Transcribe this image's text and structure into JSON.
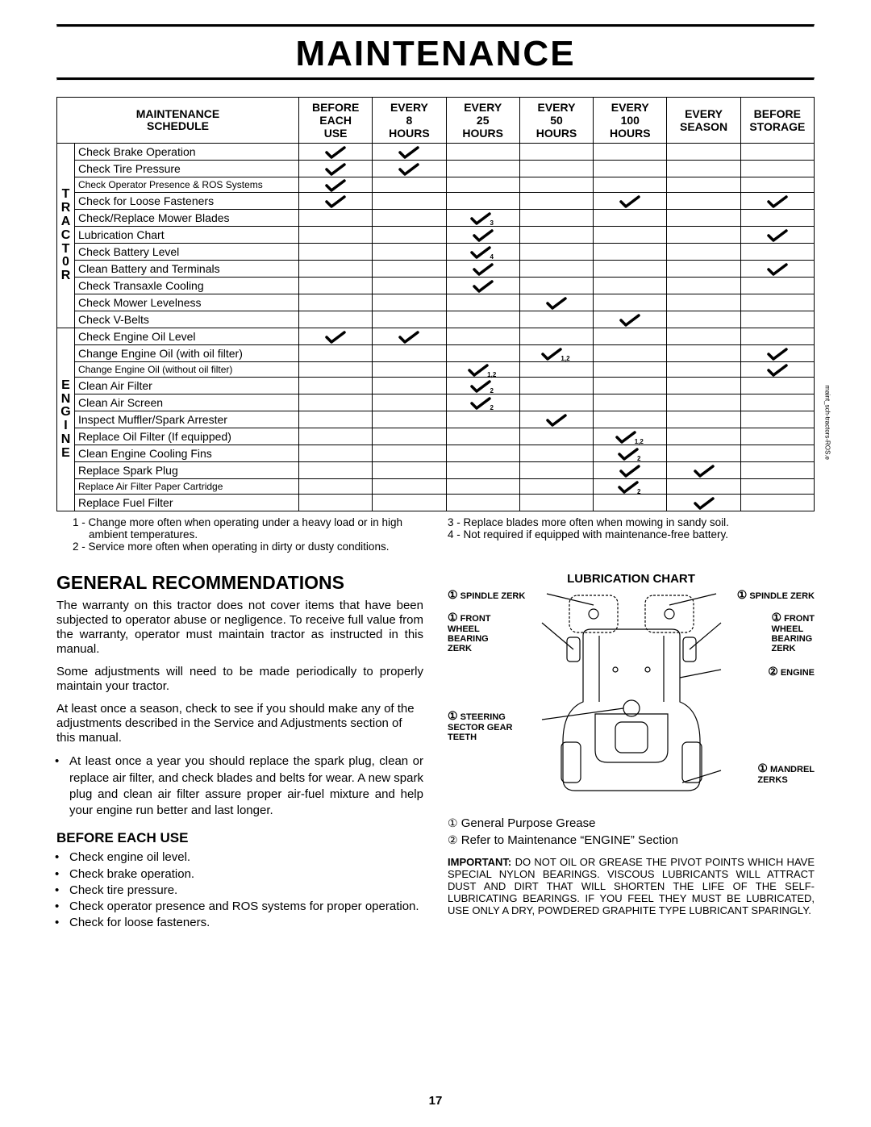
{
  "page_title": "MAINTENANCE",
  "page_number": "17",
  "side_note": "maint_sch-tractors-ROS.e",
  "schedule": {
    "header_title_l1": "MAINTENANCE",
    "header_title_l2": "SCHEDULE",
    "columns": [
      {
        "l1": "BEFORE",
        "l2": "EACH",
        "l3": "USE"
      },
      {
        "l1": "EVERY",
        "l2": "8",
        "l3": "HOURS"
      },
      {
        "l1": "EVERY",
        "l2": "25",
        "l3": "HOURS"
      },
      {
        "l1": "EVERY",
        "l2": "50",
        "l3": "HOURS"
      },
      {
        "l1": "EVERY",
        "l2": "100",
        "l3": "HOURS"
      },
      {
        "l1": "EVERY",
        "l2": "SEASON",
        "l3": ""
      },
      {
        "l1": "BEFORE",
        "l2": "STORAGE",
        "l3": ""
      }
    ],
    "sections": [
      {
        "label_letters": [
          "T",
          "R",
          "A",
          "C",
          "T",
          "0",
          "R"
        ],
        "rows": [
          {
            "task": "Check Brake Operation",
            "checks": [
              true,
              true,
              false,
              false,
              false,
              false,
              false
            ],
            "subs": [
              "",
              "",
              "",
              "",
              "",
              "",
              ""
            ]
          },
          {
            "task": "Check Tire Pressure",
            "checks": [
              true,
              true,
              false,
              false,
              false,
              false,
              false
            ],
            "subs": [
              "",
              "",
              "",
              "",
              "",
              "",
              ""
            ]
          },
          {
            "task": "Check Operator Presence & ROS Systems",
            "checks": [
              true,
              false,
              false,
              false,
              false,
              false,
              false
            ],
            "subs": [
              "",
              "",
              "",
              "",
              "",
              "",
              ""
            ],
            "small": true
          },
          {
            "task": "Check for Loose Fasteners",
            "checks": [
              true,
              false,
              false,
              false,
              true,
              false,
              true
            ],
            "subs": [
              "",
              "",
              "",
              "",
              "",
              "",
              ""
            ]
          },
          {
            "task": "Check/Replace Mower Blades",
            "checks": [
              false,
              false,
              true,
              false,
              false,
              false,
              false
            ],
            "subs": [
              "",
              "",
              "3",
              "",
              "",
              "",
              ""
            ]
          },
          {
            "task": "Lubrication Chart",
            "checks": [
              false,
              false,
              true,
              false,
              false,
              false,
              true
            ],
            "subs": [
              "",
              "",
              "",
              "",
              "",
              "",
              ""
            ]
          },
          {
            "task": "Check Battery Level",
            "checks": [
              false,
              false,
              true,
              false,
              false,
              false,
              false
            ],
            "subs": [
              "",
              "",
              "4",
              "",
              "",
              "",
              ""
            ]
          },
          {
            "task": "Clean Battery and Terminals",
            "checks": [
              false,
              false,
              true,
              false,
              false,
              false,
              true
            ],
            "subs": [
              "",
              "",
              "",
              "",
              "",
              "",
              ""
            ]
          },
          {
            "task": "Check Transaxle Cooling",
            "checks": [
              false,
              false,
              true,
              false,
              false,
              false,
              false
            ],
            "subs": [
              "",
              "",
              "",
              "",
              "",
              "",
              ""
            ]
          },
          {
            "task": "Check Mower Levelness",
            "checks": [
              false,
              false,
              false,
              true,
              false,
              false,
              false
            ],
            "subs": [
              "",
              "",
              "",
              "",
              "",
              "",
              ""
            ]
          },
          {
            "task": "Check V-Belts",
            "checks": [
              false,
              false,
              false,
              false,
              true,
              false,
              false
            ],
            "subs": [
              "",
              "",
              "",
              "",
              "",
              "",
              ""
            ]
          }
        ]
      },
      {
        "label_letters": [
          "E",
          "N",
          "G",
          "I",
          "N",
          "E"
        ],
        "rows": [
          {
            "task": "Check Engine Oil Level",
            "checks": [
              true,
              true,
              false,
              false,
              false,
              false,
              false
            ],
            "subs": [
              "",
              "",
              "",
              "",
              "",
              "",
              ""
            ]
          },
          {
            "task": "Change Engine Oil (with oil filter)",
            "checks": [
              false,
              false,
              false,
              true,
              false,
              false,
              true
            ],
            "subs": [
              "",
              "",
              "",
              "1,2",
              "",
              "",
              ""
            ]
          },
          {
            "task": "Change Engine Oil (without oil filter)",
            "checks": [
              false,
              false,
              true,
              false,
              false,
              false,
              true
            ],
            "subs": [
              "",
              "",
              "1,2",
              "",
              "",
              "",
              ""
            ],
            "small": true
          },
          {
            "task": "Clean Air Filter",
            "checks": [
              false,
              false,
              true,
              false,
              false,
              false,
              false
            ],
            "subs": [
              "",
              "",
              "2",
              "",
              "",
              "",
              ""
            ]
          },
          {
            "task": "Clean Air Screen",
            "checks": [
              false,
              false,
              true,
              false,
              false,
              false,
              false
            ],
            "subs": [
              "",
              "",
              "2",
              "",
              "",
              "",
              ""
            ]
          },
          {
            "task": "Inspect Muffler/Spark Arrester",
            "checks": [
              false,
              false,
              false,
              true,
              false,
              false,
              false
            ],
            "subs": [
              "",
              "",
              "",
              "",
              "",
              "",
              ""
            ]
          },
          {
            "task": "Replace Oil Filter (If equipped)",
            "checks": [
              false,
              false,
              false,
              false,
              true,
              false,
              false
            ],
            "subs": [
              "",
              "",
              "",
              "",
              "1,2",
              "",
              ""
            ]
          },
          {
            "task": "Clean Engine Cooling Fins",
            "checks": [
              false,
              false,
              false,
              false,
              true,
              false,
              false
            ],
            "subs": [
              "",
              "",
              "",
              "",
              "2",
              "",
              ""
            ]
          },
          {
            "task": "Replace Spark Plug",
            "checks": [
              false,
              false,
              false,
              false,
              true,
              true,
              false
            ],
            "subs": [
              "",
              "",
              "",
              "",
              "",
              "",
              ""
            ]
          },
          {
            "task": "Replace Air Filter Paper Cartridge",
            "checks": [
              false,
              false,
              false,
              false,
              true,
              false,
              false
            ],
            "subs": [
              "",
              "",
              "",
              "",
              "2",
              "",
              ""
            ],
            "small": true
          },
          {
            "task": "Replace Fuel Filter",
            "checks": [
              false,
              false,
              false,
              false,
              false,
              true,
              false
            ],
            "subs": [
              "",
              "",
              "",
              "",
              "",
              "",
              ""
            ]
          }
        ]
      }
    ]
  },
  "footnotes_left": [
    "1 - Change more often when operating under a heavy load or in high ambient temperatures.",
    "2 - Service more often when operating in dirty or dusty conditions."
  ],
  "footnotes_right": [
    "3 - Replace blades more often when mowing in sandy soil.",
    "4 - Not required if equipped with maintenance-free battery."
  ],
  "general": {
    "heading": "GENERAL RECOMMENDATIONS",
    "p1": "The warranty on this tractor does not cover items that have been subjected to operator abuse or negligence.  To receive full value from the warranty, operator must maintain tractor as instructed in this manual.",
    "p2": "Some adjustments will need to be made periodically to properly maintain your tractor.",
    "p3": "At least once a season, check to see if you should make any of the adjustments described in the Service and Adjustments section of this manual.",
    "bullet1": "At least once a year you should replace the spark plug, clean or replace air filter, and check blades and belts for wear.  A new spark plug and clean air filter assure proper air-fuel mixture and help your engine run better and last longer.",
    "before_hdr": "BEFORE EACH USE",
    "before_items": [
      "Check engine oil level.",
      "Check brake operation.",
      "Check tire pressure.",
      "Check operator presence and ROS systems for proper operation.",
      "Check for loose fasteners."
    ]
  },
  "lube": {
    "title": "LUBRICATION CHART",
    "labels": {
      "spindle_l": "SPINDLE ZERK",
      "spindle_r": "SPINDLE ZERK",
      "front_l": "FRONT\nWHEEL\nBEARING\nZERK",
      "front_r": "FRONT\nWHEEL\nBEARING\nZERK",
      "engine": "ENGINE",
      "steering": "STEERING\nSECTOR GEAR\nTEETH",
      "mandrel": "MANDREL\nZERKS"
    },
    "legend1": "General Purpose Grease",
    "legend2": "Refer to Maintenance “ENGINE” Section",
    "important_label": "IMPORTANT:",
    "important": "DO NOT OIL OR GREASE THE PIVOT POINTS WHICH HAVE SPECIAL NYLON BEARINGS.  VISCOUS LUBRICANTS WILL ATTRACT DUST AND DIRT THAT WILL SHORTEN THE LIFE OF THE SELF-LUBRICATING BEARINGS.  IF YOU FEEL THEY MUST BE LUBRICATED, USE ONLY A DRY, POWDERED GRAPHITE TYPE LUBRICANT SPARINGLY."
  }
}
